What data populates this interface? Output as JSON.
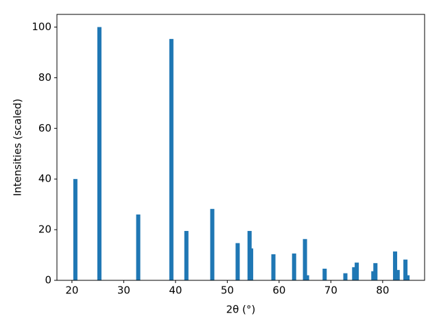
{
  "chart_data": {
    "type": "bar",
    "xlabel": "2θ (°)",
    "ylabel": "Intensities (scaled)",
    "color": "#1f77b4",
    "x": [
      20.66,
      25.3,
      32.8,
      39.2,
      42.1,
      47.1,
      52.0,
      54.3,
      54.6,
      58.9,
      62.9,
      65.0,
      65.4,
      68.8,
      72.8,
      74.5,
      75.0,
      78.2,
      78.6,
      82.4,
      82.9,
      84.4,
      84.8
    ],
    "values": [
      40,
      100,
      26,
      95.3,
      19.5,
      28.2,
      14.7,
      19.5,
      12.6,
      10.3,
      10.6,
      16.3,
      2,
      4.6,
      2.8,
      5.2,
      7.0,
      3.6,
      6.8,
      11.4,
      4.1,
      8.2,
      2
    ],
    "xlim": [
      17.1,
      88.1
    ],
    "xticks": [
      20,
      30,
      40,
      50,
      60,
      70,
      80
    ],
    "ylim": [
      0,
      105
    ],
    "yticks": [
      0,
      20,
      40,
      60,
      80,
      100
    ]
  }
}
